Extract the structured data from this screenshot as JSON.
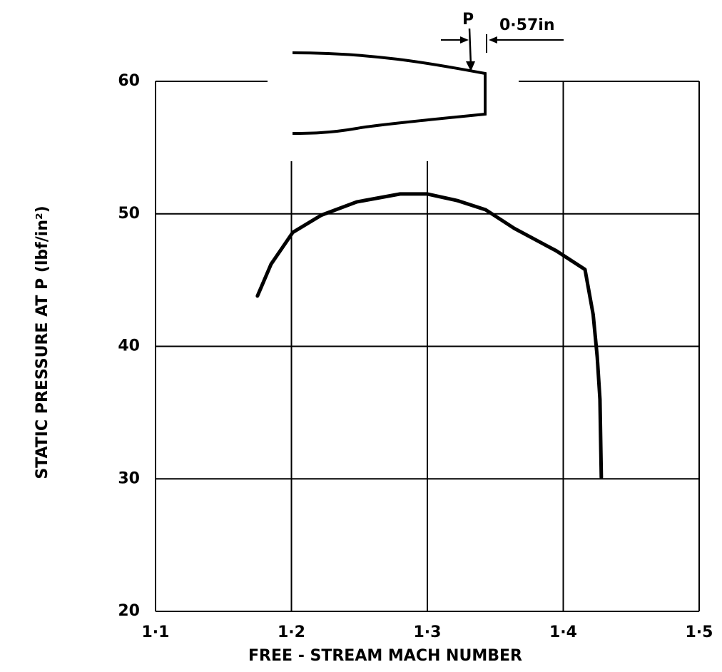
{
  "chart_data": {
    "type": "line",
    "xlabel": "FREE - STREAM  MACH NUMBER",
    "ylabel": "STATIC PRESSURE AT P (lbf/in²)",
    "annotations": [
      "P",
      "0·57in"
    ],
    "color": "#000000",
    "x": [
      1.175,
      1.185,
      1.201,
      1.222,
      1.248,
      1.28,
      1.3,
      1.322,
      1.343,
      1.364,
      1.395,
      1.416,
      1.422,
      1.425,
      1.427,
      1.428
    ],
    "values": [
      43.8,
      46.2,
      48.6,
      49.9,
      50.9,
      51.5,
      51.5,
      51.0,
      50.3,
      48.9,
      47.2,
      45.8,
      42.4,
      39.2,
      36.0,
      30.1
    ],
    "xlim": [
      1.1,
      1.5
    ],
    "xticks": [
      {
        "value": 1.1,
        "label": "1·1"
      },
      {
        "value": 1.2,
        "label": "1·2"
      },
      {
        "value": 1.3,
        "label": "1·3"
      },
      {
        "value": 1.4,
        "label": "1·4"
      },
      {
        "value": 1.5,
        "label": "1·5"
      }
    ],
    "ylim": [
      20,
      60
    ],
    "yticks": [
      20,
      30,
      40,
      50,
      60
    ],
    "grid": true
  }
}
